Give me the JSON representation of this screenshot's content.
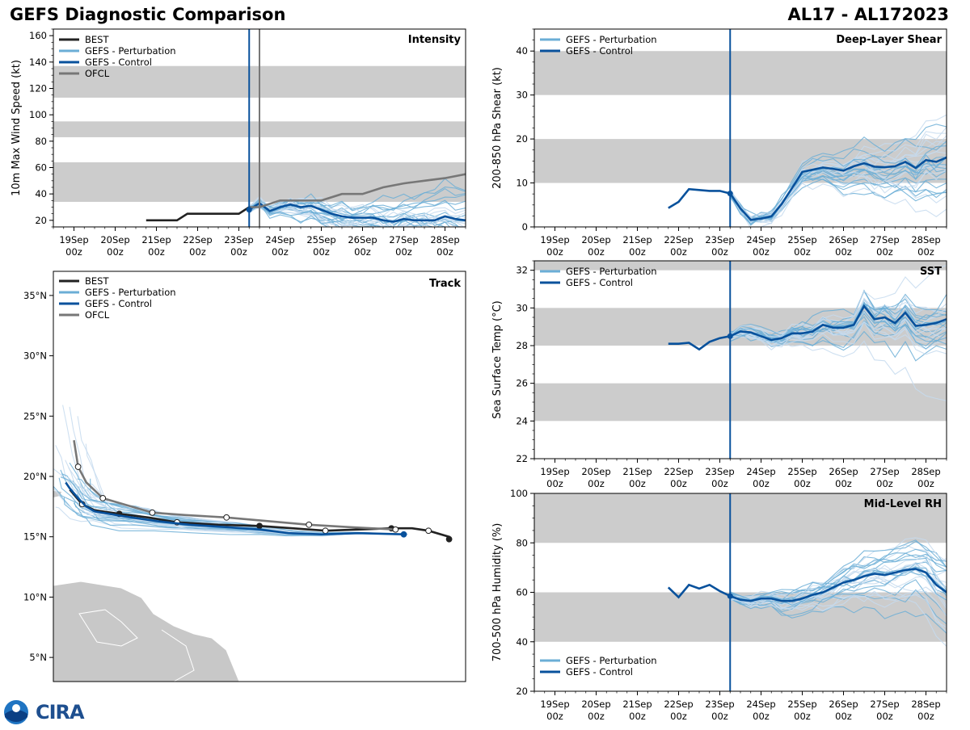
{
  "header": {
    "title_left": "GEFS Diagnostic Comparison",
    "title_right": "AL17 - AL172023"
  },
  "logo": {
    "text": "CIRA"
  },
  "colors": {
    "best": "#222222",
    "perturbation": "#6baed6",
    "perturbation_light": "#c6dbef",
    "control": "#08519c",
    "ofcl": "#777777",
    "band": "#cccccc",
    "land": "#c8c8c8"
  },
  "time_axis": {
    "labels": [
      "19Sep\n00z",
      "20Sep\n00z",
      "21Sep\n00z",
      "22Sep\n00z",
      "23Sep\n00z",
      "24Sep\n00z",
      "25Sep\n00z",
      "26Sep\n00z",
      "27Sep\n00z",
      "28Sep\n00z"
    ],
    "label_days": [
      0,
      1,
      2,
      3,
      4,
      5,
      6,
      7,
      8,
      9
    ],
    "xlim_days": [
      -0.5,
      9.5
    ],
    "init_day": 4.25
  },
  "chart_data": [
    {
      "id": "intensity",
      "type": "line",
      "title": "Intensity",
      "ylabel": "10m Max Wind Speed (kt)",
      "ylim": [
        15,
        165
      ],
      "yticks": [
        20,
        40,
        60,
        80,
        100,
        120,
        140,
        160
      ],
      "bands": [
        [
          34,
          64
        ],
        [
          83,
          95
        ],
        [
          113,
          137
        ]
      ],
      "legend": [
        "BEST",
        "GEFS - Perturbation",
        "GEFS - Control",
        "OFCL"
      ],
      "ofcl_line_day": 4.5,
      "series": [
        {
          "name": "BEST",
          "x": [
            1.75,
            2.0,
            2.5,
            2.75,
            3.0,
            3.5,
            4.0,
            4.25
          ],
          "y": [
            20,
            20,
            20,
            25,
            25,
            25,
            25,
            30
          ]
        },
        {
          "name": "GEFS - Control",
          "x": [
            4.25,
            4.5,
            4.75,
            5.0,
            5.25,
            5.5,
            5.75,
            6.0,
            6.25,
            6.5,
            6.75,
            7.0,
            7.25,
            7.5,
            7.75,
            8.0,
            8.25,
            8.5,
            8.75,
            9.0,
            9.25,
            9.5
          ],
          "y": [
            28,
            33,
            27,
            30,
            32,
            30,
            31,
            28,
            25,
            23,
            22,
            22,
            22,
            20,
            19,
            21,
            20,
            20,
            20,
            23,
            21,
            20
          ]
        },
        {
          "name": "OFCL",
          "x": [
            4.25,
            4.5,
            5.0,
            5.5,
            6.0,
            6.5,
            7.0,
            7.5,
            8.0,
            8.5,
            9.0,
            9.5
          ],
          "y": [
            30,
            30,
            35,
            35,
            35,
            40,
            40,
            45,
            48,
            50,
            52,
            55
          ]
        }
      ]
    },
    {
      "id": "track",
      "type": "line",
      "title": "Track",
      "lat_ticks": [
        "5°N",
        "10°N",
        "15°N",
        "20°N",
        "25°N",
        "30°N",
        "35°N"
      ],
      "lat_values": [
        5,
        10,
        15,
        20,
        25,
        30,
        35
      ],
      "lat_range": [
        3,
        37
      ],
      "legend": [
        "BEST",
        "GEFS - Perturbation",
        "GEFS - Control",
        "OFCL"
      ],
      "series": [
        {
          "name": "BEST",
          "points": [
            [
              0.96,
              14.8
            ],
            [
              0.96,
              15.0
            ],
            [
              0.91,
              15.5
            ],
            [
              0.87,
              15.7
            ],
            [
              0.82,
              15.7
            ],
            [
              0.74,
              15.6
            ],
            [
              0.66,
              15.5
            ],
            [
              0.58,
              15.7
            ],
            [
              0.5,
              15.9
            ],
            [
              0.4,
              16.0
            ],
            [
              0.3,
              16.2
            ],
            [
              0.23,
              16.6
            ],
            [
              0.16,
              16.9
            ],
            [
              0.1,
              17.2
            ],
            [
              0.07,
              17.7
            ],
            [
              0.04,
              18.9
            ]
          ]
        },
        {
          "name": "GEFS - Control",
          "points": [
            [
              0.85,
              15.2
            ],
            [
              0.74,
              15.3
            ],
            [
              0.65,
              15.2
            ],
            [
              0.57,
              15.3
            ],
            [
              0.5,
              15.6
            ],
            [
              0.42,
              15.8
            ],
            [
              0.33,
              16.0
            ],
            [
              0.25,
              16.3
            ],
            [
              0.17,
              16.7
            ],
            [
              0.1,
              17.1
            ],
            [
              0.08,
              17.5
            ],
            [
              0.06,
              18.2
            ],
            [
              0.04,
              19.0
            ],
            [
              0.03,
              19.5
            ]
          ]
        },
        {
          "name": "OFCL",
          "points": [
            [
              0.83,
              15.6
            ],
            [
              0.72,
              15.8
            ],
            [
              0.62,
              16.0
            ],
            [
              0.52,
              16.3
            ],
            [
              0.42,
              16.6
            ],
            [
              0.32,
              16.8
            ],
            [
              0.24,
              17.0
            ],
            [
              0.18,
              17.6
            ],
            [
              0.12,
              18.2
            ],
            [
              0.08,
              19.5
            ],
            [
              0.06,
              20.8
            ],
            [
              0.05,
              23.0
            ]
          ]
        }
      ]
    },
    {
      "id": "shear",
      "type": "line",
      "title": "Deep-Layer Shear",
      "ylabel": "200-850 hPa Shear (kt)",
      "ylim": [
        0,
        45
      ],
      "yticks": [
        0,
        10,
        20,
        30,
        40
      ],
      "bands": [
        [
          10,
          20
        ],
        [
          30,
          40
        ]
      ],
      "legend": [
        "GEFS - Perturbation",
        "GEFS - Control"
      ],
      "series": [
        {
          "name": "GEFS - Control",
          "x": [
            2.75,
            3.0,
            3.25,
            3.5,
            3.75,
            4.0,
            4.25,
            4.5,
            4.75,
            5.0,
            5.25,
            5.5,
            5.75,
            6.0,
            6.25,
            6.5,
            6.75,
            7.0,
            7.25,
            7.5,
            7.75,
            8.0,
            8.25,
            8.5,
            8.75,
            9.0,
            9.25,
            9.5
          ],
          "y": [
            4.3,
            5.7,
            8.6,
            8.4,
            8.2,
            8.2,
            7.6,
            4.2,
            1.6,
            1.9,
            2.4,
            5.2,
            8.8,
            12.5,
            13.0,
            13.5,
            13.2,
            12.8,
            13.8,
            14.5,
            13.7,
            13.6,
            13.8,
            14.8,
            13.4,
            15.2,
            14.8,
            15.8
          ]
        }
      ]
    },
    {
      "id": "sst",
      "type": "line",
      "title": "SST",
      "ylabel": "Sea Surface Temp (°C)",
      "ylim": [
        22,
        32.5
      ],
      "yticks": [
        22,
        24,
        26,
        28,
        30,
        32
      ],
      "bands": [
        [
          24,
          26
        ],
        [
          28,
          30
        ],
        [
          32,
          32.5
        ]
      ],
      "legend": [
        "GEFS - Perturbation",
        "GEFS - Control"
      ],
      "series": [
        {
          "name": "GEFS - Control",
          "x": [
            2.75,
            3.0,
            3.25,
            3.5,
            3.75,
            4.0,
            4.25,
            4.5,
            4.75,
            5.0,
            5.25,
            5.5,
            5.75,
            6.0,
            6.25,
            6.5,
            6.75,
            7.0,
            7.25,
            7.5,
            7.75,
            8.0,
            8.25,
            8.5,
            8.75,
            9.0,
            9.25,
            9.5
          ],
          "y": [
            28.1,
            28.1,
            28.15,
            27.8,
            28.2,
            28.4,
            28.5,
            28.75,
            28.7,
            28.5,
            28.3,
            28.4,
            28.65,
            28.65,
            28.75,
            29.1,
            28.95,
            28.95,
            29.1,
            30.1,
            29.4,
            29.5,
            29.2,
            29.75,
            29.05,
            29.1,
            29.2,
            29.4
          ]
        }
      ]
    },
    {
      "id": "rh",
      "type": "line",
      "title": "Mid-Level RH",
      "ylabel": "700-500 hPa Humidity (%)",
      "ylim": [
        20,
        100
      ],
      "yticks": [
        20,
        40,
        60,
        80,
        100
      ],
      "bands": [
        [
          40,
          60
        ],
        [
          80,
          100
        ]
      ],
      "legend": [
        "GEFS - Perturbation",
        "GEFS - Control"
      ],
      "series": [
        {
          "name": "GEFS - Control",
          "x": [
            2.75,
            3.0,
            3.25,
            3.5,
            3.75,
            4.0,
            4.25,
            4.5,
            4.75,
            5.0,
            5.25,
            5.5,
            5.75,
            6.0,
            6.25,
            6.5,
            6.75,
            7.0,
            7.25,
            7.5,
            7.75,
            8.0,
            8.25,
            8.5,
            8.75,
            9.0,
            9.25,
            9.5
          ],
          "y": [
            62,
            58,
            63,
            61.5,
            63,
            60.5,
            58.5,
            57,
            56.5,
            57.5,
            57.5,
            56.5,
            56.5,
            57.5,
            59,
            60,
            62,
            64,
            65,
            66.5,
            67.5,
            67,
            68,
            69,
            69.5,
            68,
            63,
            60
          ]
        }
      ]
    }
  ]
}
